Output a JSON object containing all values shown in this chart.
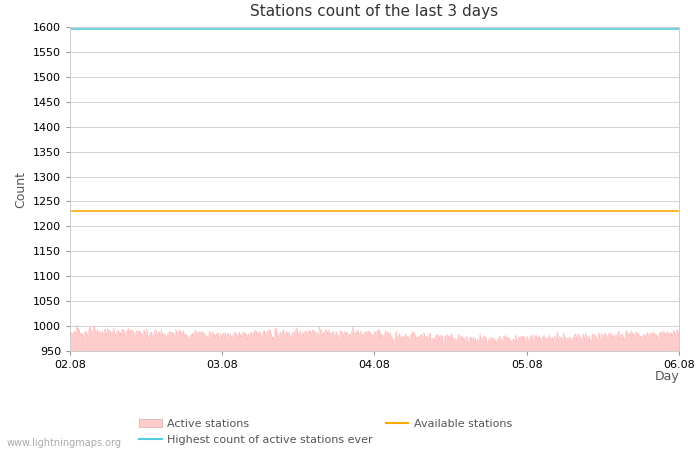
{
  "title": "Stations count of the last 3 days",
  "xlabel": "Day",
  "ylabel": "Count",
  "ylim": [
    950,
    1600
  ],
  "yticks": [
    950,
    1000,
    1050,
    1100,
    1150,
    1200,
    1250,
    1300,
    1350,
    1400,
    1450,
    1500,
    1550,
    1600
  ],
  "xlim_start": 0,
  "xlim_end": 288,
  "xtick_positions": [
    0,
    72,
    144,
    216,
    288
  ],
  "xtick_labels": [
    "02.08",
    "03.08",
    "04.08",
    "05.08",
    "06.08"
  ],
  "highest_ever": 1595,
  "available_stations": 1230,
  "active_stations_mean": 982,
  "active_stations_std": 8,
  "active_color_fill": "#ffcccc",
  "active_color_line": "#ffaaaa",
  "highest_color": "#55ccdd",
  "available_color": "#ffaa00",
  "background_color": "#ffffff",
  "grid_color": "#cccccc",
  "title_fontsize": 11,
  "axis_label_fontsize": 9,
  "tick_fontsize": 8,
  "watermark": "www.lightningmaps.org",
  "legend_labels": [
    "Active stations",
    "Highest count of active stations ever",
    "Available stations"
  ]
}
